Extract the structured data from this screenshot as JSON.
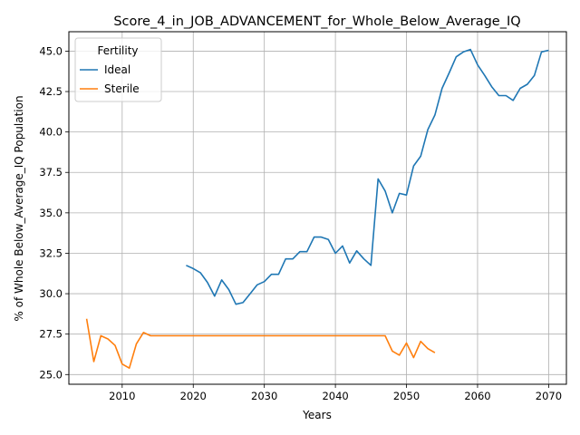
{
  "chart_data": {
    "type": "line",
    "title": "Score_4_in_JOB_ADVANCEMENT_for_Whole_Below_Average_IQ",
    "xlabel": "Years",
    "ylabel": "% of Whole Below_Average_IQ Population",
    "xlim": [
      2002.5,
      2072.5
    ],
    "ylim": [
      24.4,
      46.2
    ],
    "xticks": [
      2010,
      2020,
      2030,
      2040,
      2050,
      2060,
      2070
    ],
    "yticks": [
      25.0,
      27.5,
      30.0,
      32.5,
      35.0,
      37.5,
      40.0,
      42.5,
      45.0
    ],
    "xtick_labels": [
      "2010",
      "2020",
      "2030",
      "2040",
      "2050",
      "2060",
      "2070"
    ],
    "ytick_labels": [
      "25.0",
      "27.5",
      "30.0",
      "32.5",
      "35.0",
      "37.5",
      "40.0",
      "42.5",
      "45.0"
    ],
    "grid": true,
    "legend": {
      "title": "Fertility",
      "position": "top-left"
    },
    "series": [
      {
        "name": "Ideal",
        "color": "#1f77b4",
        "x": [
          2019,
          2020,
          2021,
          2022,
          2023,
          2024,
          2025,
          2026,
          2027,
          2028,
          2029,
          2030,
          2031,
          2032,
          2033,
          2034,
          2035,
          2036,
          2037,
          2038,
          2039,
          2040,
          2041,
          2042,
          2043,
          2044,
          2045,
          2046,
          2047,
          2048,
          2049,
          2050,
          2051,
          2052,
          2053,
          2054,
          2055,
          2056,
          2057,
          2058,
          2059,
          2060,
          2061,
          2062,
          2063,
          2064,
          2065,
          2066,
          2067,
          2068,
          2069,
          2070
        ],
        "values": [
          31.75,
          31.55,
          31.3,
          30.7,
          29.85,
          30.85,
          30.25,
          29.35,
          29.45,
          30.0,
          30.55,
          30.75,
          31.2,
          31.2,
          32.15,
          32.15,
          32.6,
          32.6,
          33.5,
          33.5,
          33.35,
          32.5,
          32.95,
          31.9,
          32.65,
          32.15,
          31.75,
          37.1,
          36.35,
          35.0,
          36.2,
          36.1,
          37.9,
          38.5,
          40.15,
          41.05,
          42.7,
          43.65,
          44.65,
          44.95,
          45.1,
          44.15,
          43.5,
          42.8,
          42.25,
          42.25,
          41.95,
          42.7,
          42.95,
          43.5,
          44.95,
          45.05
        ]
      },
      {
        "name": "Sterile",
        "color": "#ff7f0e",
        "x": [
          2005,
          2006,
          2007,
          2008,
          2009,
          2010,
          2011,
          2012,
          2013,
          2014,
          2015,
          2016,
          2017,
          2018,
          2019,
          2020,
          2021,
          2022,
          2023,
          2024,
          2025,
          2026,
          2027,
          2028,
          2029,
          2030,
          2031,
          2032,
          2033,
          2034,
          2035,
          2036,
          2037,
          2038,
          2039,
          2040,
          2041,
          2042,
          2043,
          2044,
          2045,
          2046,
          2047,
          2048,
          2049,
          2050,
          2051,
          2052,
          2053,
          2054
        ],
        "values": [
          28.45,
          25.8,
          27.4,
          27.2,
          26.8,
          25.65,
          25.4,
          26.9,
          27.6,
          27.4,
          27.4,
          27.4,
          27.4,
          27.4,
          27.4,
          27.4,
          27.4,
          27.4,
          27.4,
          27.4,
          27.4,
          27.4,
          27.4,
          27.4,
          27.4,
          27.4,
          27.4,
          27.4,
          27.4,
          27.4,
          27.4,
          27.4,
          27.4,
          27.4,
          27.4,
          27.4,
          27.4,
          27.4,
          27.4,
          27.4,
          27.4,
          27.4,
          27.4,
          26.45,
          26.2,
          26.95,
          26.05,
          27.05,
          26.6,
          26.35
        ]
      }
    ]
  }
}
